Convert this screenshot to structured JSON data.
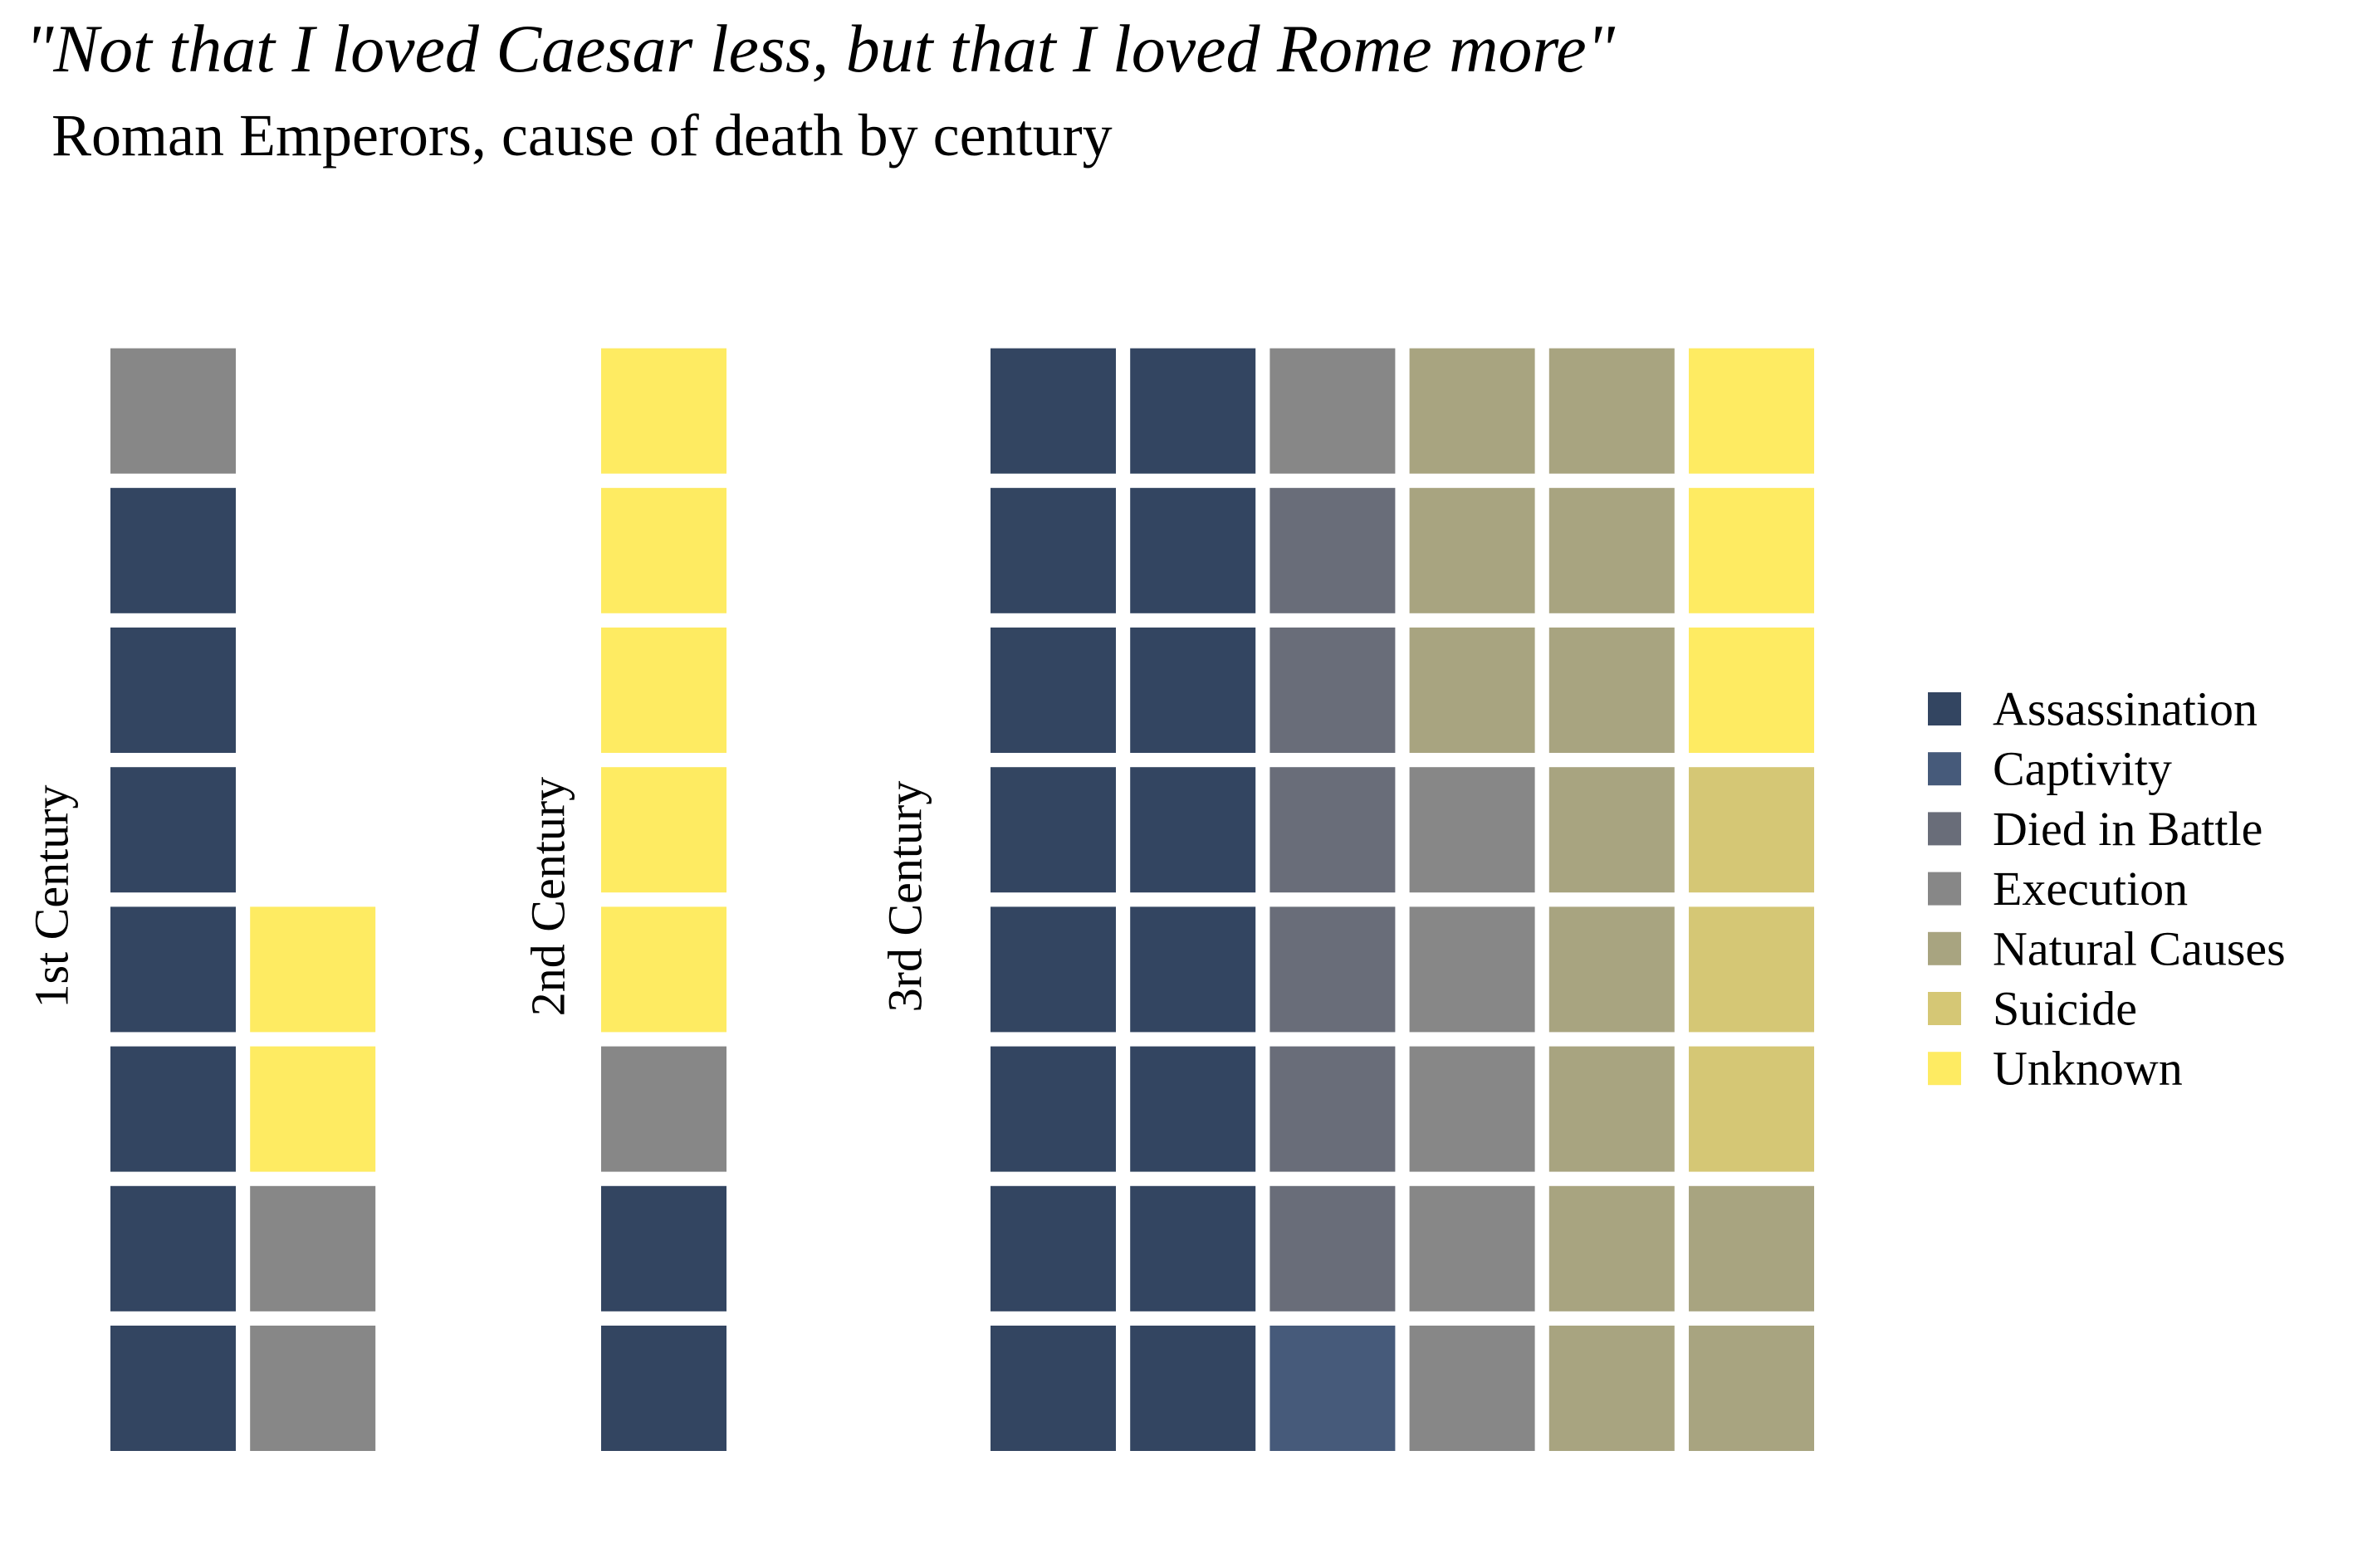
{
  "title": "\"Not that I loved Caesar less, but that I loved Rome more\"",
  "subtitle": "Roman Emperors, cause of death by century",
  "chart_data": {
    "type": "waffle",
    "title": "\"Not that I loved Caesar less, but that I loved Rome more\"",
    "subtitle": "Roman Emperors, cause of death by century",
    "categories": [
      "Assassination",
      "Captivity",
      "Died in Battle",
      "Execution",
      "Natural Causes",
      "Suicide",
      "Unknown"
    ],
    "colors": {
      "Assassination": "#334561",
      "Captivity": "#465a7a",
      "Died in Battle": "#696d79",
      "Execution": "#878787",
      "Natural Causes": "#a8a480",
      "Suicide": "#d5c775",
      "Unknown": "#feeb62"
    },
    "legend_position": "right",
    "grid_rows": 8,
    "fill_order": "column-wise, bottom to top, left to right",
    "panels": [
      {
        "label": "1st Century",
        "counts": {
          "Assassination": 7,
          "Captivity": 0,
          "Died in Battle": 0,
          "Execution": 3,
          "Natural Causes": 0,
          "Suicide": 0,
          "Unknown": 2
        },
        "cells": [
          "Assassination",
          "Assassination",
          "Assassination",
          "Assassination",
          "Assassination",
          "Assassination",
          "Assassination",
          "Execution",
          "Execution",
          "Execution",
          "Unknown",
          "Unknown"
        ]
      },
      {
        "label": "2nd Century",
        "counts": {
          "Assassination": 2,
          "Captivity": 0,
          "Died in Battle": 0,
          "Execution": 1,
          "Natural Causes": 0,
          "Suicide": 0,
          "Unknown": 5
        },
        "cells": [
          "Assassination",
          "Assassination",
          "Execution",
          "Unknown",
          "Unknown",
          "Unknown",
          "Unknown",
          "Unknown"
        ]
      },
      {
        "label": "3rd Century",
        "counts": {
          "Assassination": 16,
          "Captivity": 1,
          "Died in Battle": 6,
          "Execution": 6,
          "Natural Causes": 13,
          "Suicide": 3,
          "Unknown": 3
        },
        "cells": [
          "Assassination",
          "Assassination",
          "Assassination",
          "Assassination",
          "Assassination",
          "Assassination",
          "Assassination",
          "Assassination",
          "Assassination",
          "Assassination",
          "Assassination",
          "Assassination",
          "Assassination",
          "Assassination",
          "Assassination",
          "Assassination",
          "Captivity",
          "Died in Battle",
          "Died in Battle",
          "Died in Battle",
          "Died in Battle",
          "Died in Battle",
          "Died in Battle",
          "Execution",
          "Execution",
          "Execution",
          "Execution",
          "Execution",
          "Execution",
          "Natural Causes",
          "Natural Causes",
          "Natural Causes",
          "Natural Causes",
          "Natural Causes",
          "Natural Causes",
          "Natural Causes",
          "Natural Causes",
          "Natural Causes",
          "Natural Causes",
          "Natural Causes",
          "Natural Causes",
          "Natural Causes",
          "Suicide",
          "Suicide",
          "Suicide",
          "Unknown",
          "Unknown",
          "Unknown"
        ]
      }
    ]
  }
}
